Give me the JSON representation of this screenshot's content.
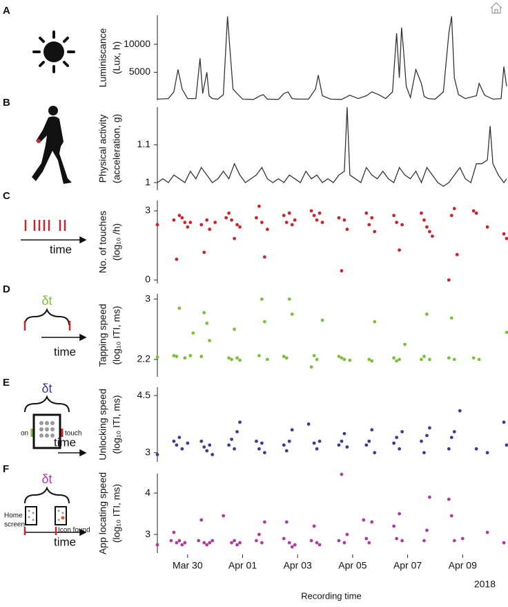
{
  "chart_data": [
    {
      "type": "line",
      "panel": "A",
      "ylabel": [
        "Luminiscance",
        "(Lux, h)"
      ],
      "color": "#333333",
      "xlim": [
        0.9,
        13.6
      ],
      "ylim": [
        0,
        15200
      ],
      "yticks": [
        5000,
        10000
      ],
      "x": [
        0.9,
        1.3,
        1.5,
        1.65,
        1.8,
        2.0,
        2.3,
        2.45,
        2.55,
        2.7,
        2.78,
        2.9,
        3.1,
        3.3,
        3.45,
        3.54,
        3.65,
        3.8,
        4.0,
        4.4,
        4.6,
        4.75,
        4.9,
        5.3,
        5.5,
        5.65,
        5.8,
        6.0,
        6.4,
        6.65,
        6.75,
        6.9,
        7.2,
        7.6,
        7.9,
        8.2,
        8.5,
        8.7,
        8.95,
        9.2,
        9.45,
        9.6,
        9.7,
        9.78,
        9.85,
        9.95,
        10.1,
        10.3,
        10.5,
        10.6,
        10.75,
        11.0,
        11.3,
        11.5,
        11.6,
        11.7,
        11.85,
        12.1,
        12.5,
        12.6,
        12.8,
        13.1,
        13.4,
        13.5,
        13.6
      ],
      "values": [
        200,
        300,
        1500,
        5500,
        2000,
        300,
        300,
        7500,
        1200,
        5000,
        800,
        300,
        200,
        1000,
        15000,
        9000,
        2000,
        1200,
        200,
        150,
        700,
        1000,
        200,
        150,
        1200,
        1500,
        300,
        200,
        200,
        2000,
        4500,
        800,
        200,
        150,
        900,
        300,
        800,
        1500,
        1000,
        300,
        1500,
        12000,
        4000,
        13000,
        9000,
        2500,
        500,
        5500,
        3000,
        700,
        300,
        200,
        1500,
        12000,
        15000,
        4000,
        1000,
        300,
        800,
        3000,
        900,
        200,
        300,
        6000,
        2500
      ],
      "illustration_texts": []
    },
    {
      "type": "line",
      "panel": "B",
      "ylabel": [
        "Physical activity",
        "(acceleration, g)"
      ],
      "color": "#333333",
      "xlim": [
        0.9,
        13.6
      ],
      "ylim": [
        0.98,
        1.2
      ],
      "yticks": [
        1,
        1.1
      ],
      "x": [
        0.9,
        1.1,
        1.3,
        1.5,
        1.7,
        1.9,
        2.1,
        2.3,
        2.5,
        2.7,
        2.9,
        3.1,
        3.3,
        3.5,
        3.7,
        3.9,
        4.1,
        4.3,
        4.5,
        4.7,
        4.9,
        5.1,
        5.3,
        5.5,
        5.7,
        5.9,
        6.1,
        6.3,
        6.5,
        6.7,
        6.9,
        7.1,
        7.3,
        7.5,
        7.7,
        7.8,
        7.9,
        8.1,
        8.3,
        8.5,
        8.7,
        8.9,
        9.1,
        9.3,
        9.5,
        9.7,
        9.9,
        10.1,
        10.3,
        10.5,
        10.7,
        10.9,
        11.1,
        11.3,
        11.5,
        11.7,
        11.9,
        12.1,
        12.3,
        12.5,
        12.7,
        12.9,
        13.0,
        13.1,
        13.3,
        13.5,
        13.6
      ],
      "values": [
        1.0,
        1.01,
        1.0,
        1.02,
        1.01,
        1.0,
        1.03,
        1.01,
        1.04,
        1.02,
        1.0,
        1.01,
        1.03,
        1.01,
        1.05,
        1.02,
        1.0,
        1.01,
        1.02,
        1.04,
        1.01,
        1.0,
        1.01,
        1.0,
        1.02,
        1.01,
        1.0,
        1.03,
        1.01,
        1.02,
        1.0,
        1.01,
        1.0,
        1.02,
        1.03,
        1.2,
        1.02,
        1.01,
        1.0,
        1.04,
        1.02,
        1.01,
        1.03,
        1.01,
        1.0,
        1.04,
        1.02,
        1.01,
        1.03,
        1.0,
        1.04,
        1.02,
        1.0,
        0.99,
        1.0,
        1.02,
        1.04,
        1.01,
        1.0,
        1.05,
        1.05,
        1.06,
        1.15,
        1.05,
        1.02,
        1.0,
        1.01
      ],
      "illustration_texts": []
    },
    {
      "type": "scatter",
      "panel": "C",
      "ylabel": [
        "No. of touches",
        "(log₁₀ /h)"
      ],
      "color": "#c8262c",
      "xlim": [
        0.9,
        13.6
      ],
      "ylim": [
        -0.15,
        3.45
      ],
      "yticks": [
        0,
        3
      ],
      "x": [
        0.9,
        1.5,
        1.6,
        1.7,
        1.8,
        1.9,
        2.0,
        2.1,
        2.5,
        2.6,
        2.7,
        2.8,
        3.0,
        3.4,
        3.5,
        3.6,
        3.7,
        3.8,
        3.9,
        4.5,
        4.6,
        4.7,
        4.8,
        4.9,
        5.5,
        5.6,
        5.7,
        5.8,
        5.9,
        6.5,
        6.6,
        6.7,
        6.8,
        6.9,
        7.5,
        7.6,
        7.7,
        7.8,
        8.5,
        8.6,
        8.7,
        8.8,
        9.5,
        9.6,
        9.7,
        9.8,
        10.5,
        10.6,
        10.7,
        10.8,
        10.9,
        11.5,
        11.6,
        11.7,
        11.8,
        12.4,
        12.5,
        12.9,
        13.5,
        13.6
      ],
      "values": [
        2.4,
        2.6,
        0.9,
        2.8,
        2.7,
        2.5,
        2.3,
        2.5,
        2.4,
        1.2,
        2.6,
        2.2,
        2.5,
        2.7,
        2.9,
        2.6,
        1.8,
        2.4,
        2.3,
        2.7,
        3.2,
        2.5,
        1.0,
        2.2,
        2.8,
        2.5,
        2.9,
        2.4,
        2.6,
        3.0,
        2.8,
        2.6,
        2.9,
        2.5,
        2.7,
        0.4,
        2.6,
        2.2,
        2.9,
        2.4,
        2.7,
        2.1,
        2.8,
        2.5,
        1.3,
        2.4,
        2.9,
        2.6,
        2.3,
        2.1,
        1.9,
        0.0,
        2.8,
        3.1,
        1.1,
        3.0,
        2.9,
        2.3,
        2.0,
        1.8
      ],
      "illustration_texts": [
        "time"
      ]
    },
    {
      "type": "scatter",
      "panel": "D",
      "ylabel": [
        "Tapping speed",
        "(log₁₀ ITI, ms)"
      ],
      "color": "#7cbf3a",
      "xlim": [
        0.9,
        13.6
      ],
      "ylim": [
        1.97,
        3.07
      ],
      "yticks": [
        2.2,
        3
      ],
      "x": [
        0.9,
        1.5,
        1.6,
        1.7,
        1.9,
        2.1,
        2.2,
        2.5,
        2.6,
        2.7,
        2.8,
        3.5,
        3.6,
        3.7,
        3.8,
        3.9,
        4.6,
        4.7,
        4.8,
        4.9,
        5.5,
        5.6,
        5.7,
        5.8,
        6.5,
        6.6,
        6.7,
        6.9,
        7.5,
        7.6,
        7.7,
        7.9,
        8.6,
        8.7,
        8.8,
        9.5,
        9.6,
        9.7,
        9.9,
        10.5,
        10.6,
        10.7,
        10.8,
        11.5,
        11.6,
        11.7,
        12.4,
        12.6,
        13.6
      ],
      "values": [
        2.23,
        2.25,
        2.24,
        2.88,
        2.22,
        2.25,
        2.55,
        2.24,
        2.82,
        2.68,
        2.45,
        2.22,
        2.2,
        2.6,
        2.22,
        2.19,
        2.25,
        3.0,
        2.7,
        2.2,
        2.24,
        2.22,
        3.0,
        2.8,
        2.1,
        2.25,
        2.2,
        2.72,
        2.24,
        2.22,
        2.2,
        2.19,
        2.2,
        2.18,
        2.7,
        2.22,
        2.18,
        2.2,
        2.4,
        2.2,
        2.24,
        2.8,
        2.2,
        2.22,
        2.75,
        2.2,
        2.22,
        2.2,
        2.56
      ],
      "illustration_texts": [
        "δt",
        "time"
      ]
    },
    {
      "type": "scatter",
      "panel": "E",
      "ylabel": [
        "Unlocking speed",
        "(log₁₀ ITI, ms)"
      ],
      "color": "#3b3b9a",
      "xlim": [
        0.9,
        13.6
      ],
      "ylim": [
        2.76,
        4.72
      ],
      "yticks": [
        3,
        4.5
      ],
      "x": [
        0.9,
        1.5,
        1.6,
        1.7,
        1.8,
        2.0,
        2.5,
        2.6,
        2.7,
        2.8,
        2.9,
        3.5,
        3.6,
        3.7,
        3.8,
        3.9,
        4.5,
        4.6,
        4.7,
        4.8,
        5.5,
        5.6,
        5.7,
        5.8,
        6.4,
        6.6,
        6.7,
        6.8,
        7.5,
        7.6,
        7.7,
        7.8,
        8.5,
        8.6,
        8.7,
        8.8,
        9.5,
        9.6,
        9.7,
        9.8,
        10.5,
        10.6,
        10.7,
        10.8,
        11.5,
        11.6,
        11.7,
        11.9,
        12.5,
        12.9,
        13.5,
        13.6
      ],
      "values": [
        2.95,
        3.3,
        3.2,
        3.4,
        3.1,
        3.25,
        3.3,
        3.15,
        3.05,
        3.2,
        2.95,
        3.2,
        3.35,
        3.1,
        3.55,
        3.8,
        3.3,
        3.1,
        3.25,
        3.0,
        3.2,
        3.05,
        3.3,
        3.6,
        3.75,
        3.25,
        3.1,
        3.3,
        3.2,
        3.3,
        3.5,
        3.15,
        3.2,
        3.3,
        3.6,
        3.0,
        3.25,
        3.4,
        3.1,
        3.55,
        3.3,
        3.0,
        3.45,
        3.65,
        3.1,
        3.4,
        3.55,
        4.1,
        3.1,
        3.0,
        3.8,
        3.2
      ],
      "illustration_texts": [
        "δt",
        "on",
        "touch",
        "time"
      ]
    },
    {
      "type": "scatter",
      "panel": "F",
      "ylabel": [
        "App locating speed",
        "(log₁₀ ITI, ms)"
      ],
      "color": "#b03aa3",
      "xlim": [
        0.9,
        13.6
      ],
      "ylim": [
        2.55,
        4.47
      ],
      "yticks": [
        3,
        4
      ],
      "x": [
        0.9,
        1.4,
        1.5,
        1.6,
        1.7,
        1.8,
        1.9,
        2.4,
        2.5,
        2.6,
        2.7,
        2.8,
        2.9,
        3.3,
        3.6,
        3.7,
        3.8,
        3.9,
        4.5,
        4.6,
        4.7,
        4.8,
        5.5,
        5.6,
        5.7,
        5.8,
        5.9,
        6.5,
        6.6,
        6.7,
        6.8,
        7.5,
        7.6,
        7.7,
        7.8,
        8.4,
        8.5,
        8.6,
        8.7,
        9.5,
        9.6,
        9.7,
        9.8,
        10.6,
        10.7,
        10.8,
        11.5,
        11.6,
        11.7,
        12.0,
        12.9,
        13.5
      ],
      "values": [
        2.75,
        2.85,
        3.05,
        2.8,
        2.85,
        2.75,
        2.8,
        2.85,
        3.35,
        2.8,
        2.75,
        2.8,
        2.85,
        3.45,
        2.8,
        2.85,
        2.75,
        2.8,
        2.85,
        3.0,
        2.8,
        3.3,
        2.9,
        3.3,
        2.8,
        2.7,
        2.75,
        2.85,
        3.2,
        2.8,
        2.75,
        2.85,
        4.45,
        2.8,
        3.0,
        3.35,
        2.9,
        2.8,
        3.3,
        3.2,
        2.9,
        3.5,
        2.85,
        2.85,
        3.1,
        3.9,
        3.85,
        3.45,
        2.85,
        2.9,
        3.05,
        2.8
      ],
      "illustration_texts": [
        "δt",
        "Home",
        "screen",
        "Icon found",
        "time"
      ],
      "xticks": [
        {
          "value": 2,
          "label": "Mar 30"
        },
        {
          "value": 4,
          "label": "Apr 01"
        },
        {
          "value": 6,
          "label": "Apr 03"
        },
        {
          "value": 8,
          "label": "Apr 05"
        },
        {
          "value": 10,
          "label": "Apr 07"
        },
        {
          "value": 12,
          "label": "Apr 09"
        }
      ],
      "year": "2018",
      "xlabel": "Recording time"
    }
  ]
}
